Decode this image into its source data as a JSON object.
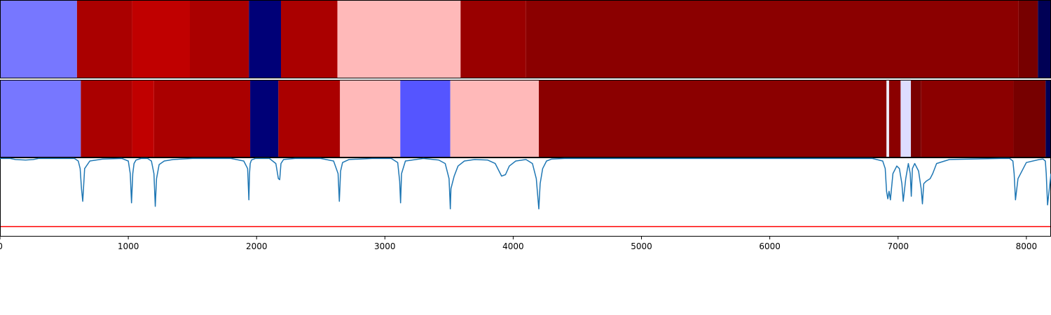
{
  "chart_data": {
    "type": "heatmap",
    "xlim": [
      0,
      8192
    ],
    "x_ticks": [
      0,
      1000,
      2000,
      3000,
      4000,
      5000,
      6000,
      7000,
      8000
    ],
    "x_tick_labels": [
      "0",
      "1000",
      "2000",
      "3000",
      "4000",
      "5000",
      "6000",
      "7000",
      "8000"
    ],
    "grid": false,
    "legend": "none",
    "tracks": [
      {
        "segments": [
          {
            "start": 0,
            "end": 600,
            "color": "#7777ff"
          },
          {
            "start": 600,
            "end": 1030,
            "color": "#aa0000"
          },
          {
            "start": 1030,
            "end": 1480,
            "color": "#c00000"
          },
          {
            "start": 1480,
            "end": 1940,
            "color": "#aa0000"
          },
          {
            "start": 1940,
            "end": 2190,
            "color": "#000077"
          },
          {
            "start": 2190,
            "end": 2630,
            "color": "#aa0000"
          },
          {
            "start": 2630,
            "end": 3590,
            "color": "#ffb9b9"
          },
          {
            "start": 3590,
            "end": 4100,
            "color": "#990000"
          },
          {
            "start": 4100,
            "end": 7940,
            "color": "#8b0000"
          },
          {
            "start": 7940,
            "end": 8090,
            "color": "#770000"
          },
          {
            "start": 8090,
            "end": 8192,
            "color": "#000055"
          }
        ]
      },
      {
        "segments": [
          {
            "start": 0,
            "end": 630,
            "color": "#7777ff"
          },
          {
            "start": 630,
            "end": 1030,
            "color": "#aa0000"
          },
          {
            "start": 1030,
            "end": 1200,
            "color": "#c00000"
          },
          {
            "start": 1200,
            "end": 1950,
            "color": "#aa0000"
          },
          {
            "start": 1950,
            "end": 2170,
            "color": "#000077"
          },
          {
            "start": 2170,
            "end": 2650,
            "color": "#aa0000"
          },
          {
            "start": 2650,
            "end": 3120,
            "color": "#ffb9b9"
          },
          {
            "start": 3120,
            "end": 3510,
            "color": "#5555ff"
          },
          {
            "start": 3510,
            "end": 4200,
            "color": "#ffb9b9"
          },
          {
            "start": 4200,
            "end": 6910,
            "color": "#8b0000"
          },
          {
            "start": 6910,
            "end": 6930,
            "color": "#eeeeff"
          },
          {
            "start": 6930,
            "end": 7020,
            "color": "#8b0000"
          },
          {
            "start": 7020,
            "end": 7100,
            "color": "#ddddff"
          },
          {
            "start": 7100,
            "end": 7180,
            "color": "#7a0000"
          },
          {
            "start": 7180,
            "end": 7900,
            "color": "#8b0000"
          },
          {
            "start": 7900,
            "end": 8150,
            "color": "#770000"
          },
          {
            "start": 8150,
            "end": 8192,
            "color": "#000055"
          }
        ]
      }
    ],
    "line_series": {
      "color": "#1f77b4",
      "ylim": [
        -1,
        0.03
      ],
      "x": [
        0,
        80,
        120,
        200,
        260,
        300,
        580,
        610,
        625,
        635,
        645,
        660,
        700,
        800,
        950,
        1000,
        1015,
        1025,
        1035,
        1045,
        1060,
        1100,
        1150,
        1180,
        1200,
        1210,
        1220,
        1240,
        1280,
        1350,
        1500,
        1800,
        1900,
        1930,
        1940,
        1945,
        1950,
        1960,
        1990,
        2100,
        2150,
        2170,
        2180,
        2190,
        2210,
        2300,
        2500,
        2600,
        2635,
        2645,
        2655,
        2670,
        2720,
        2900,
        3050,
        3100,
        3115,
        3122,
        3130,
        3160,
        3300,
        3420,
        3470,
        3500,
        3510,
        3515,
        3525,
        3540,
        3570,
        3620,
        3700,
        3800,
        3860,
        3910,
        3940,
        3970,
        4020,
        4100,
        4150,
        4180,
        4200,
        4210,
        4230,
        4260,
        4300,
        4400,
        5000,
        6000,
        6800,
        6880,
        6900,
        6910,
        6920,
        6930,
        6940,
        6960,
        6990,
        7010,
        7030,
        7040,
        7060,
        7080,
        7095,
        7103,
        7112,
        7130,
        7160,
        7180,
        7190,
        7200,
        7220,
        7250,
        7270,
        7300,
        7400,
        7800,
        7870,
        7895,
        7905,
        7915,
        7935,
        8000,
        8100,
        8130,
        8148,
        8155,
        8165,
        8192
      ],
      "y": [
        0,
        0,
        -0.02,
        -0.03,
        -0.02,
        0,
        0,
        -0.05,
        -0.2,
        -0.6,
        -0.85,
        -0.2,
        -0.05,
        -0.01,
        0,
        -0.05,
        -0.3,
        -0.88,
        -0.3,
        -0.1,
        -0.03,
        0,
        0,
        -0.05,
        -0.3,
        -0.95,
        -0.4,
        -0.12,
        -0.05,
        -0.02,
        0,
        0,
        -0.05,
        -0.2,
        -0.82,
        -0.3,
        -0.1,
        -0.03,
        0,
        0,
        -0.1,
        -0.4,
        -0.42,
        -0.1,
        -0.02,
        0,
        0,
        -0.05,
        -0.3,
        -0.85,
        -0.25,
        -0.08,
        -0.02,
        0,
        0,
        -0.08,
        -0.45,
        -0.88,
        -0.3,
        -0.05,
        0,
        -0.03,
        -0.1,
        -0.4,
        -1.0,
        -0.6,
        -0.5,
        -0.35,
        -0.15,
        -0.05,
        -0.02,
        -0.03,
        -0.1,
        -0.35,
        -0.32,
        -0.15,
        -0.05,
        -0.02,
        -0.1,
        -0.4,
        -1.0,
        -0.5,
        -0.2,
        -0.05,
        -0.01,
        0,
        0,
        0,
        0,
        -0.05,
        -0.2,
        -0.65,
        -0.8,
        -0.65,
        -0.82,
        -0.3,
        -0.15,
        -0.2,
        -0.5,
        -0.85,
        -0.4,
        -0.1,
        -0.3,
        -0.75,
        -0.2,
        -0.1,
        -0.25,
        -0.6,
        -0.9,
        -0.5,
        -0.45,
        -0.4,
        -0.3,
        -0.1,
        -0.02,
        0,
        0,
        -0.05,
        -0.3,
        -0.82,
        -0.4,
        -0.08,
        -0.02,
        -0.01,
        -0.05,
        -0.3,
        -0.92,
        -0.3,
        -0.05,
        -0.02
      ]
    },
    "threshold": {
      "value": -1.35,
      "color": "#ff0000"
    }
  }
}
